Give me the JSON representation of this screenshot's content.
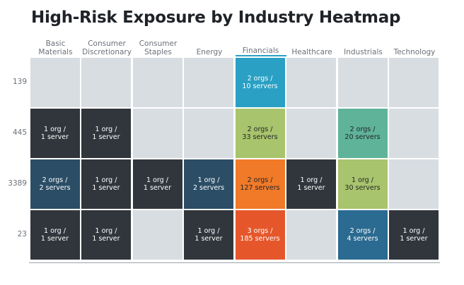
{
  "chart_data": {
    "type": "heatmap",
    "title": "High-Risk Exposure by Industry Heatmap",
    "columns": [
      "Basic\nMaterials",
      "Consumer\nDiscretionary",
      "Consumer\nStaples",
      "Energy",
      "Financials",
      "Healthcare",
      "Industrials",
      "Technology"
    ],
    "rows": [
      "139",
      "445",
      "3389",
      "23"
    ],
    "cells": [
      [
        null,
        null,
        null,
        null,
        {
          "text": "2 orgs /\n10 servers",
          "orgs": 2,
          "servers": 10,
          "color": "#29a0c4"
        },
        null,
        null,
        null
      ],
      [
        {
          "text": "1 org /\n1 server",
          "orgs": 1,
          "servers": 1,
          "color": "#30363c"
        },
        {
          "text": "1 org /\n1 server",
          "orgs": 1,
          "servers": 1,
          "color": "#30363c"
        },
        null,
        null,
        {
          "text": "2 orgs /\n33 servers",
          "orgs": 2,
          "servers": 33,
          "color": "#a8c46c"
        },
        null,
        {
          "text": "2 orgs /\n20 servers",
          "orgs": 2,
          "servers": 20,
          "color": "#5fb399"
        },
        null
      ],
      [
        {
          "text": "2 orgs /\n2 servers",
          "orgs": 2,
          "servers": 2,
          "color": "#2b4d66"
        },
        {
          "text": "1 org /\n1 server",
          "orgs": 1,
          "servers": 1,
          "color": "#30363c"
        },
        {
          "text": "1 org /\n1 server",
          "orgs": 1,
          "servers": 1,
          "color": "#30363c"
        },
        {
          "text": "1 org /\n2 servers",
          "orgs": 1,
          "servers": 2,
          "color": "#2b4d66"
        },
        {
          "text": "2 orgs /\n127 servers",
          "orgs": 2,
          "servers": 127,
          "color": "#f07a28"
        },
        {
          "text": "1 org /\n1 server",
          "orgs": 1,
          "servers": 1,
          "color": "#30363c"
        },
        {
          "text": "1 org /\n30 servers",
          "orgs": 1,
          "servers": 30,
          "color": "#a8c46c"
        },
        null
      ],
      [
        {
          "text": "1 org /\n1 server",
          "orgs": 1,
          "servers": 1,
          "color": "#30363c"
        },
        {
          "text": "1 org /\n1 server",
          "orgs": 1,
          "servers": 1,
          "color": "#30363c"
        },
        null,
        {
          "text": "1 org /\n1 server",
          "orgs": 1,
          "servers": 1,
          "color": "#30363c"
        },
        {
          "text": "3 orgs /\n185 servers",
          "orgs": 3,
          "servers": 185,
          "color": "#e5572b"
        },
        null,
        {
          "text": "2 orgs /\n4 servers",
          "orgs": 2,
          "servers": 4,
          "color": "#2b6a91"
        },
        {
          "text": "1 org /\n1 server",
          "orgs": 1,
          "servers": 1,
          "color": "#30363c"
        }
      ]
    ],
    "empty_color": "#d7dde1",
    "highlight_column": "Financials",
    "highlight_color": "#29a0c4"
  }
}
